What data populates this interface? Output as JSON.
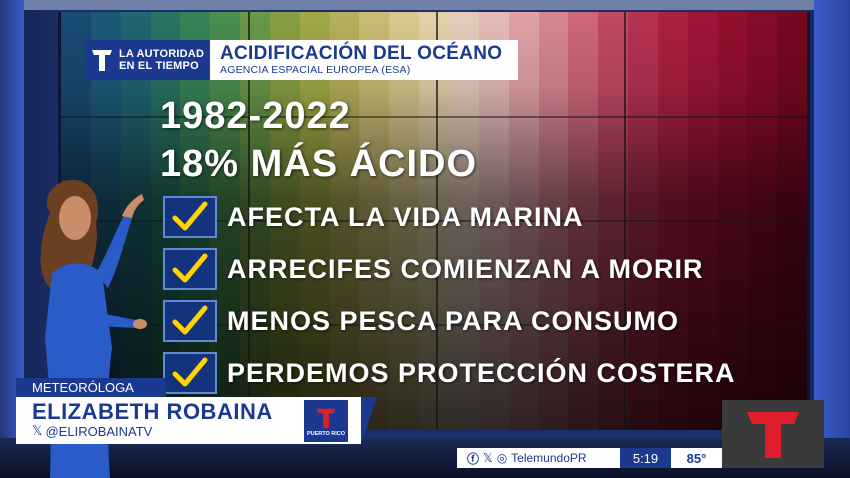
{
  "graphic": {
    "brand_line1": "LA AUTORIDAD",
    "brand_line2": "EN EL TIEMPO",
    "title": "ACIDIFICACIÓN DEL OCÉANO",
    "subtitle": "AGENCIA ESPACIAL EUROPEA (ESA)",
    "years": "1982-2022",
    "headline": "18% MÁS ÁCIDO",
    "items": [
      {
        "label": "AFECTA LA VIDA MARINA",
        "checked": true
      },
      {
        "label": "ARRECIFES COMIENZAN A MORIR",
        "checked": true
      },
      {
        "label": "MENOS PESCA PARA CONSUMO",
        "checked": true
      },
      {
        "label": "PERDEMOS PROTECCIÓN COSTERA",
        "checked": true
      }
    ],
    "stripe_colors": [
      "#1a4f7a",
      "#1f5f7f",
      "#226b77",
      "#2a7a6a",
      "#3a8a5c",
      "#4f9654",
      "#6ea04d",
      "#8fa846",
      "#aab24a",
      "#c1b960",
      "#d5c67a",
      "#e4d394",
      "#efdcb1",
      "#f3d7c5",
      "#f2c5c2",
      "#ecaab0",
      "#e38d99",
      "#d96c7f",
      "#cc4d68",
      "#c13556",
      "#b52244",
      "#a8163a",
      "#9c1031",
      "#8e0c2a",
      "#7d0922"
    ]
  },
  "lower_third": {
    "role": "METEORÓLOGA",
    "name": "ELIZABETH ROBAINA",
    "handle": "@ELIROBAINATV",
    "logo_text": "PUERTO RICO"
  },
  "ticker": {
    "social": "TelemundoPR",
    "time": "5:19",
    "temperature": "85°"
  },
  "colors": {
    "brand_blue": "#1b3a8f",
    "telemundo_red": "#e01e2b",
    "check_yellow": "#ffd400"
  }
}
